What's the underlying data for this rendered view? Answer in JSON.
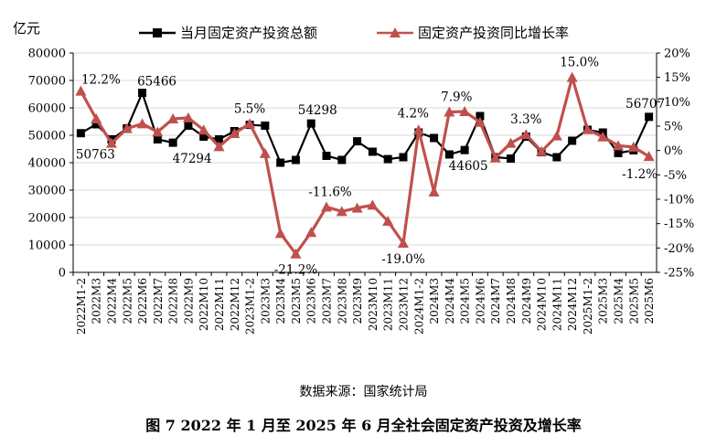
{
  "chart_data": {
    "type": "line",
    "unit_label": "亿元",
    "categories": [
      "2022M1-2",
      "2022M3",
      "2022M4",
      "2022M5",
      "2022M6",
      "2022M7",
      "2022M8",
      "2022M9",
      "2022M10",
      "2022M11",
      "2022M12",
      "2023M1-2",
      "2023M3",
      "2023M4",
      "2023M5",
      "2023M6",
      "2023M7",
      "2023M8",
      "2023M9",
      "2023M10",
      "2023M11",
      "2023M12",
      "2024M1-2",
      "2024M3",
      "2024M4",
      "2024M5",
      "2024M6",
      "2024M7",
      "2024M8",
      "2024M9",
      "2024M10",
      "2024M11",
      "2024M12",
      "2025M1-2",
      "2025M3",
      "2025M4",
      "2025M5",
      "2025M6"
    ],
    "series": [
      {
        "name": "当月固定资产投资总额",
        "axis": "left",
        "color": "#000000",
        "marker": "square",
        "values": [
          50763,
          54000,
          48500,
          52500,
          65466,
          48500,
          47294,
          53500,
          49500,
          48500,
          51500,
          53800,
          53500,
          40000,
          41000,
          54298,
          42500,
          41000,
          47800,
          44000,
          41300,
          42000,
          51000,
          49000,
          43000,
          44605,
          57000,
          42000,
          41500,
          49500,
          43800,
          42000,
          48000,
          52000,
          51000,
          43500,
          44500,
          56707
        ]
      },
      {
        "name": "固定资产投资同比增长率",
        "axis": "right",
        "unit": "%",
        "color": "#c0504d",
        "marker": "triangle",
        "values": [
          12.2,
          6.5,
          1.5,
          4.5,
          5.5,
          3.8,
          6.5,
          6.7,
          4.2,
          0.8,
          3.5,
          5.5,
          -0.6,
          -17.0,
          -21.2,
          -16.8,
          -11.6,
          -12.5,
          -11.8,
          -11.2,
          -14.5,
          -19.0,
          4.2,
          -8.5,
          7.9,
          8.0,
          5.8,
          -1.5,
          1.5,
          3.3,
          -0.2,
          3.0,
          15.0,
          4.3,
          2.8,
          1.0,
          0.7,
          -1.2
        ]
      }
    ],
    "left_axis": {
      "min": 0,
      "max": 80000,
      "step": 10000
    },
    "right_axis": {
      "min": -25,
      "max": 20,
      "step": 5,
      "suffix": "%"
    },
    "left_ticks": [
      "0",
      "10000",
      "20000",
      "30000",
      "40000",
      "50000",
      "60000",
      "70000",
      "80000"
    ],
    "right_ticks": [
      "-25%",
      "-20%",
      "-15%",
      "-10%",
      "-5%",
      "0%",
      "5%",
      "10%",
      "15%",
      "20%"
    ],
    "legend_position": "top",
    "grid": "horizontal",
    "annotations": [
      {
        "text": "12.2%",
        "series": 1,
        "index": 0,
        "dx": 22,
        "dy": -8
      },
      {
        "text": "50763",
        "series": 0,
        "index": 0,
        "dx": 16,
        "dy": 28
      },
      {
        "text": "65466",
        "series": 0,
        "index": 4,
        "dx": 16,
        "dy": -8
      },
      {
        "text": "47294",
        "series": 0,
        "index": 6,
        "dx": 21,
        "dy": 22
      },
      {
        "text": "5.5%",
        "series": 1,
        "index": 11,
        "dx": 0,
        "dy": -12
      },
      {
        "text": "54298",
        "series": 0,
        "index": 15,
        "dx": 7,
        "dy": -10
      },
      {
        "text": "-21.2%",
        "series": 1,
        "index": 14,
        "dx": 0,
        "dy": 22
      },
      {
        "text": "-11.6%",
        "series": 1,
        "index": 16,
        "dx": 4,
        "dy": -12
      },
      {
        "text": "-19.0%",
        "series": 1,
        "index": 21,
        "dx": 0,
        "dy": 22
      },
      {
        "text": "4.2%",
        "series": 1,
        "index": 22,
        "dx": -6,
        "dy": -14
      },
      {
        "text": "7.9%",
        "series": 1,
        "index": 24,
        "dx": 8,
        "dy": -12
      },
      {
        "text": "44605",
        "series": 0,
        "index": 25,
        "dx": 4,
        "dy": 22
      },
      {
        "text": "3.3%",
        "series": 1,
        "index": 29,
        "dx": 0,
        "dy": -12
      },
      {
        "text": "15.0%",
        "series": 1,
        "index": 32,
        "dx": 8,
        "dy": -12
      },
      {
        "text": "56707",
        "series": 0,
        "index": 37,
        "dx": -4,
        "dy": -10
      },
      {
        "text": "-1.2%",
        "series": 1,
        "index": 37,
        "dx": -10,
        "dy": 24
      }
    ]
  },
  "source_text": "数据来源：国家统计局",
  "caption_text": "图 7  2022 年 1 月至 2025 年 6 月全社会固定资产投资及增长率"
}
